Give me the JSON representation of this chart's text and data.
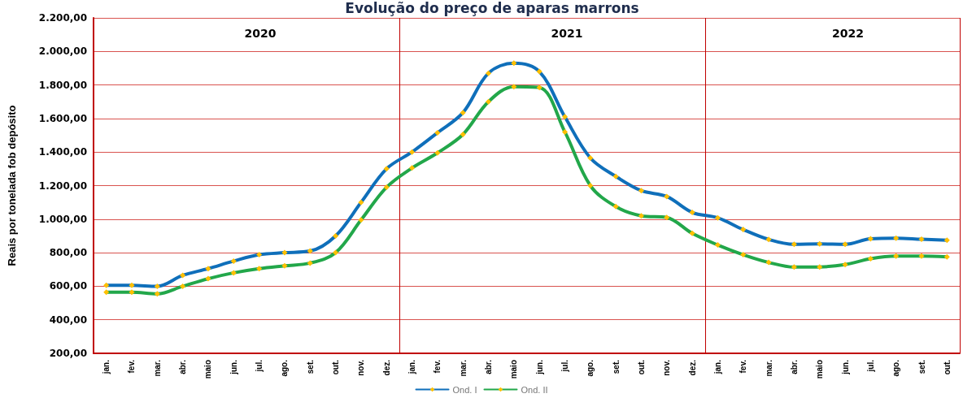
{
  "chart_data": {
    "type": "line",
    "title": "Evolução do preço de aparas marrons",
    "ylabel": "Reais por tonelada fob depósito",
    "categories": [
      "jan.",
      "fev.",
      "mar.",
      "abr.",
      "maio",
      "jun.",
      "jul.",
      "ago.",
      "set.",
      "out.",
      "nov.",
      "dez.",
      "jan.",
      "fev.",
      "mar.",
      "abr.",
      "maio",
      "jun.",
      "jul.",
      "ago.",
      "set.",
      "out.",
      "nov.",
      "dez.",
      "jan.",
      "fev.",
      "mar.",
      "abr.",
      "maio",
      "jun.",
      "jul.",
      "ago.",
      "set.",
      "out."
    ],
    "series": [
      {
        "name": "Ond. I",
        "color": "#0f6fba",
        "values": [
          605,
          605,
          600,
          665,
          705,
          750,
          788,
          800,
          810,
          900,
          1100,
          1300,
          1400,
          1515,
          1635,
          1870,
          1930,
          1880,
          1610,
          1365,
          1255,
          1170,
          1135,
          1040,
          1008,
          938,
          879,
          850,
          852,
          850,
          883,
          887,
          880,
          874
        ]
      },
      {
        "name": "Ond. II",
        "color": "#22a74a",
        "values": [
          565,
          565,
          555,
          600,
          645,
          680,
          705,
          722,
          738,
          800,
          995,
          1190,
          1305,
          1395,
          1505,
          1700,
          1790,
          1785,
          1520,
          1200,
          1075,
          1020,
          1010,
          915,
          846,
          788,
          742,
          714,
          715,
          729,
          764,
          780,
          780,
          775
        ]
      }
    ],
    "ylim": [
      200,
      2200
    ],
    "yticks": [
      {
        "value": 200,
        "label": "200,00"
      },
      {
        "value": 400,
        "label": "400,00"
      },
      {
        "value": 600,
        "label": "600,00"
      },
      {
        "value": 800,
        "label": "800,00"
      },
      {
        "value": 1000,
        "label": "1.000,00"
      },
      {
        "value": 1200,
        "label": "1.200,00"
      },
      {
        "value": 1400,
        "label": "1.400,00"
      },
      {
        "value": 1600,
        "label": "1.600,00"
      },
      {
        "value": 1800,
        "label": "1.800,00"
      },
      {
        "value": 2000,
        "label": "2.000,00"
      },
      {
        "value": 2200,
        "label": "2.200,00"
      }
    ],
    "annotations": [
      "2020",
      "2021",
      "2022"
    ],
    "grid": "y",
    "legend": "bottom",
    "marker": "diamond",
    "line_style": "solid"
  }
}
